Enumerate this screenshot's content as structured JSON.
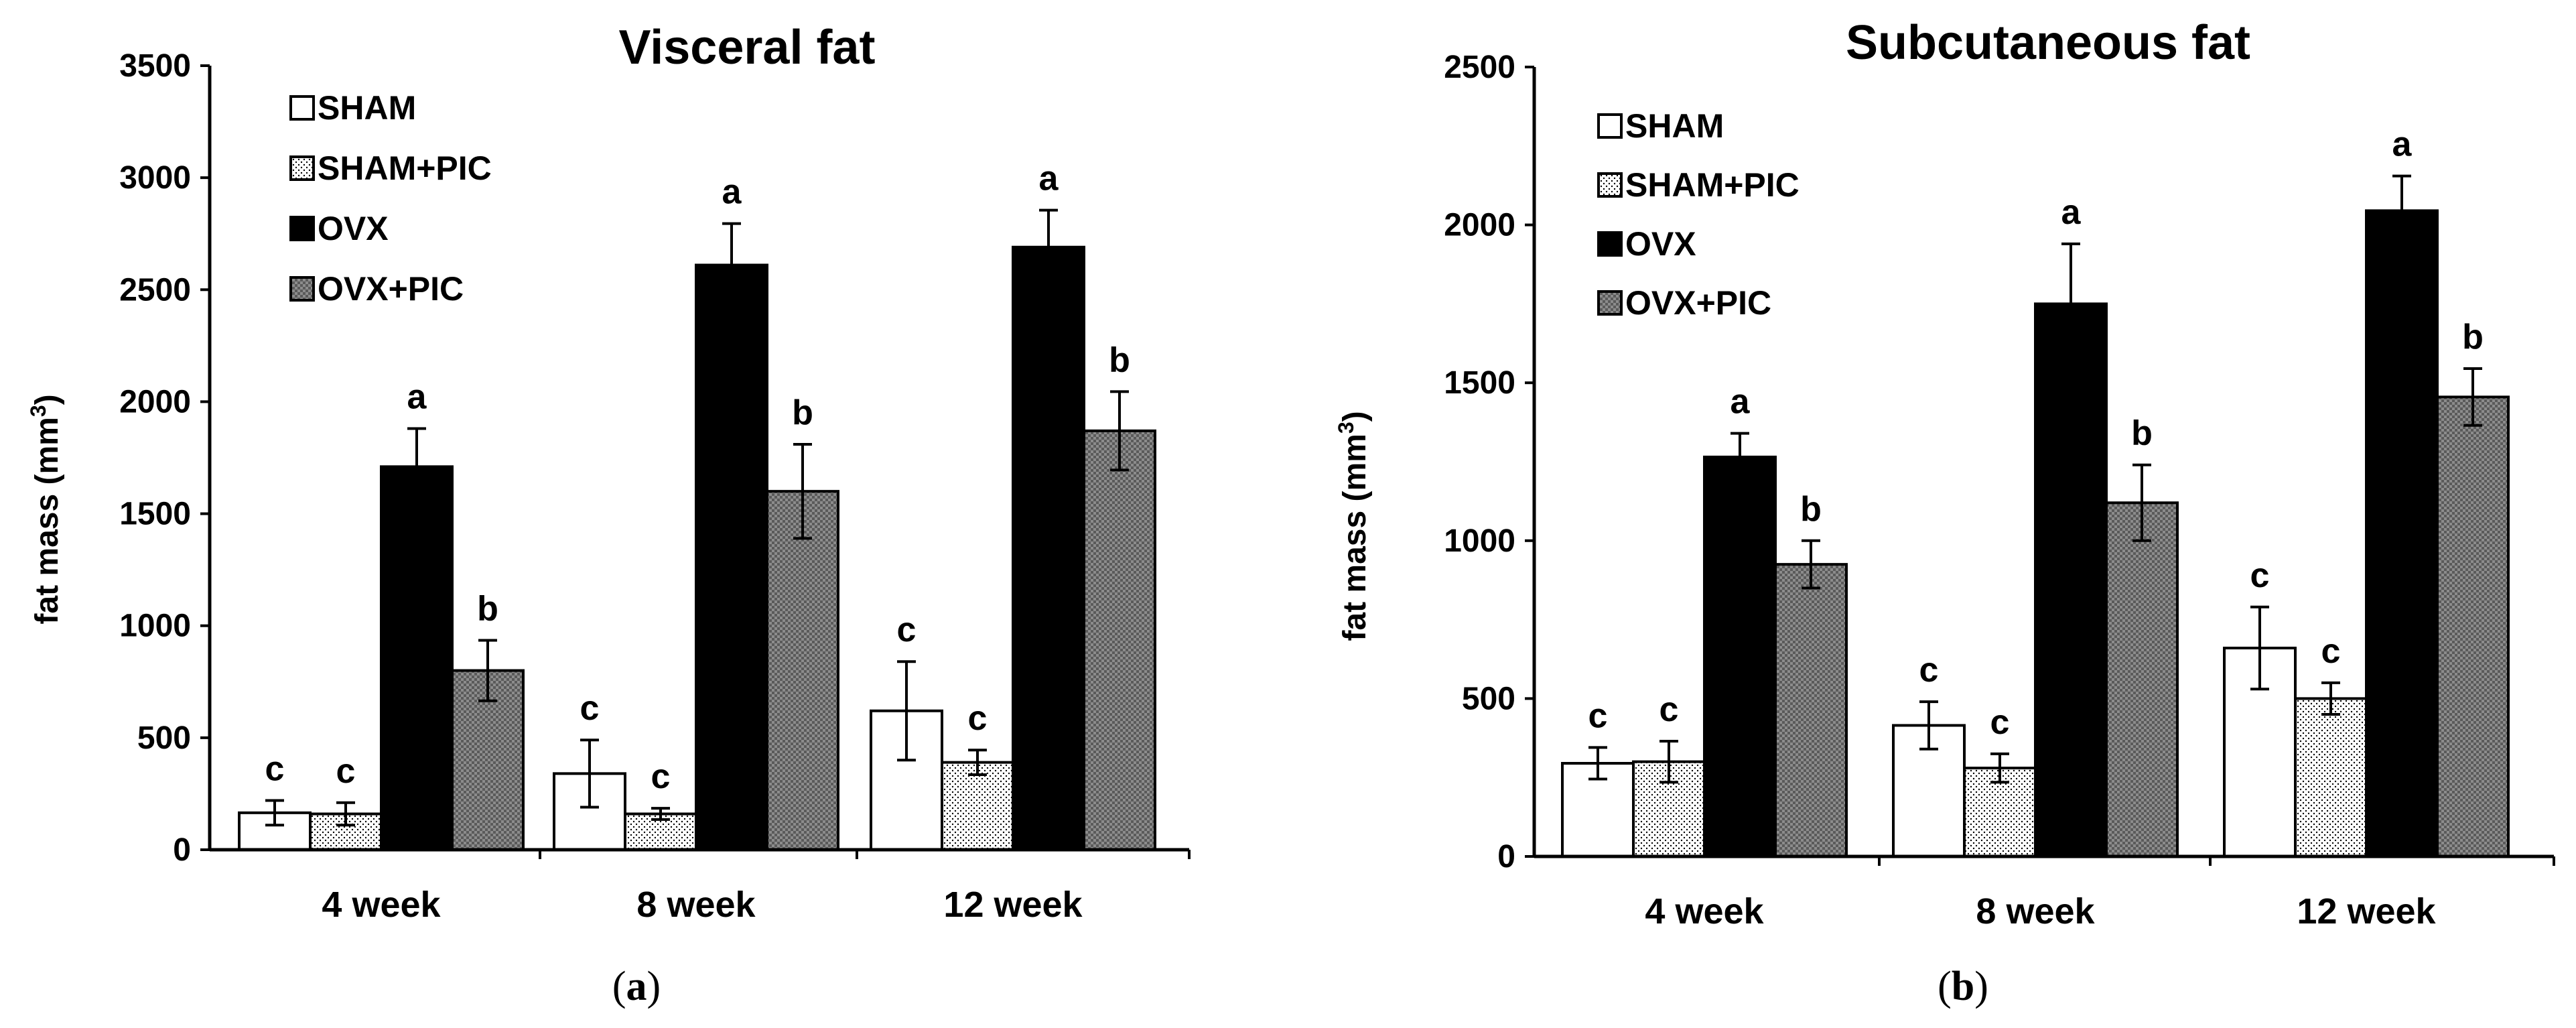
{
  "chart_data": [
    {
      "type": "bar",
      "panel_label": "a",
      "title": "Visceral fat",
      "ylabel_main": "fat mass (mm",
      "ylabel_sup": "3",
      "ylabel_close": ")",
      "xlabel": "",
      "ylim": [
        0,
        3500
      ],
      "yticks": [
        0,
        500,
        1000,
        1500,
        2000,
        2500,
        3000,
        3500
      ],
      "categories": [
        "4 week",
        "8 week",
        "12 week"
      ],
      "legend_position": "top-left",
      "series": [
        {
          "name": "SHAM",
          "values": [
            165,
            340,
            620
          ],
          "errors": [
            55,
            150,
            220
          ],
          "letters": [
            "c",
            "c",
            "c"
          ]
        },
        {
          "name": "SHAM+PIC",
          "values": [
            160,
            160,
            390
          ],
          "errors": [
            50,
            25,
            55
          ],
          "letters": [
            "c",
            "c",
            "c"
          ]
        },
        {
          "name": "OVX",
          "values": [
            1710,
            2610,
            2690
          ],
          "errors": [
            170,
            185,
            165
          ],
          "letters": [
            "a",
            "a",
            "a"
          ]
        },
        {
          "name": "OVX+PIC",
          "values": [
            800,
            1600,
            1870
          ],
          "errors": [
            135,
            210,
            175
          ],
          "letters": [
            "b",
            "b",
            "b"
          ]
        }
      ]
    },
    {
      "type": "bar",
      "panel_label": "b",
      "title": "Subcutaneous fat",
      "ylabel_main": "fat mass (mm",
      "ylabel_sup": "3",
      "ylabel_close": ")",
      "xlabel": "",
      "ylim": [
        0,
        2500
      ],
      "yticks": [
        0,
        500,
        1000,
        1500,
        2000,
        2500
      ],
      "categories": [
        "4 week",
        "8 week",
        "12 week"
      ],
      "legend_position": "top-left",
      "series": [
        {
          "name": "SHAM",
          "values": [
            295,
            415,
            660
          ],
          "errors": [
            50,
            75,
            130
          ],
          "letters": [
            "c",
            "c",
            "c"
          ]
        },
        {
          "name": "SHAM+PIC",
          "values": [
            300,
            280,
            500
          ],
          "errors": [
            65,
            45,
            50
          ],
          "letters": [
            "c",
            "c",
            "c"
          ]
        },
        {
          "name": "OVX",
          "values": [
            1265,
            1750,
            2045
          ],
          "errors": [
            75,
            190,
            110
          ],
          "letters": [
            "a",
            "a",
            "a"
          ]
        },
        {
          "name": "OVX+PIC",
          "values": [
            925,
            1120,
            1455
          ],
          "errors": [
            75,
            120,
            90
          ],
          "letters": [
            "b",
            "b",
            "b"
          ]
        }
      ]
    }
  ],
  "colors": {
    "sham": "#ffffff",
    "sham_pic_dots": "#000000",
    "ovx": "#000000",
    "ovx_pic": "#8a8a8a",
    "axis": "#000000"
  }
}
